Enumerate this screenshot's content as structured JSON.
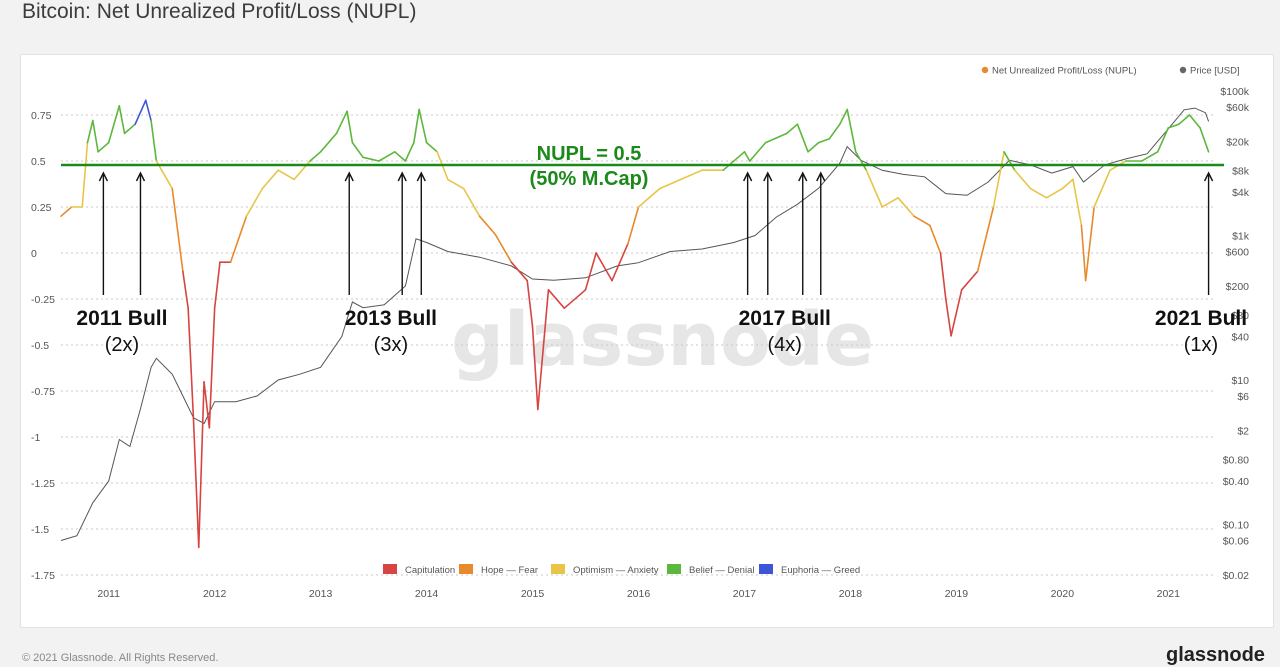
{
  "page": {
    "title": "Bitcoin: Net Unrealized Profit/Loss (NUPL)",
    "footer_left": "© 2021 Glassnode. All Rights Reserved.",
    "footer_brand": "glassnode",
    "watermark": "glassnode"
  },
  "chart_data": {
    "type": "line",
    "title": "Bitcoin: Net Unrealized Profit/Loss (NUPL)",
    "x_ticks": [
      "2011",
      "2012",
      "2013",
      "2014",
      "2015",
      "2016",
      "2017",
      "2018",
      "2019",
      "2020",
      "2021"
    ],
    "x_range": [
      2010.55,
      2021.45
    ],
    "y_left_ticks": [
      "0.75",
      "0.5",
      "0.25",
      "0",
      "-0.25",
      "-0.5",
      "-0.75",
      "-1",
      "-1.25",
      "-1.5",
      "-1.75"
    ],
    "y_left_values": [
      0.75,
      0.5,
      0.25,
      0,
      -0.25,
      -0.5,
      -0.75,
      -1,
      -1.25,
      -1.5,
      -1.75
    ],
    "y_left_range": [
      -1.75,
      0.95
    ],
    "y_right_scale": "log",
    "y_right_ticks": [
      "$100k",
      "$60k",
      "$20k",
      "$8k",
      "$4k",
      "$1k",
      "$600",
      "$200",
      "$80",
      "$40",
      "$10",
      "$6",
      "$2",
      "$0.80",
      "$0.40",
      "$0.10",
      "$0.06",
      "$0.02"
    ],
    "y_right_values": [
      100000,
      60000,
      20000,
      8000,
      4000,
      1000,
      600,
      200,
      80,
      40,
      10,
      6,
      2,
      0.8,
      0.4,
      0.1,
      0.06,
      0.02
    ],
    "top_legend": [
      {
        "name": "Net Unrealized Profit/Loss (NUPL)",
        "color": "#e8892b"
      },
      {
        "name": "Price [USD]",
        "color": "#666666"
      }
    ],
    "zone_legend": [
      {
        "name": "Capitulation",
        "color": "#d64541",
        "min": -2,
        "max": 0
      },
      {
        "name": "Hope — Fear",
        "color": "#e8892b",
        "min": 0,
        "max": 0.25
      },
      {
        "name": "Optimism — Anxiety",
        "color": "#e8c547",
        "min": 0.25,
        "max": 0.5
      },
      {
        "name": "Belief — Denial",
        "color": "#5cb83c",
        "min": 0.5,
        "max": 0.75
      },
      {
        "name": "Euphoria — Greed",
        "color": "#3e55d6",
        "min": 0.75,
        "max": 2
      }
    ],
    "reference_line": {
      "y": 0.5,
      "color": "#1b8a1b",
      "label_line1": "NUPL = 0.5",
      "label_line2": "(50% M.Cap)"
    },
    "nupl_series": {
      "x": [
        2010.55,
        2010.65,
        2010.75,
        2010.8,
        2010.85,
        2010.9,
        2011.0,
        2011.1,
        2011.15,
        2011.25,
        2011.35,
        2011.4,
        2011.45,
        2011.5,
        2011.6,
        2011.7,
        2011.75,
        2011.8,
        2011.85,
        2011.9,
        2011.95,
        2012.0,
        2012.05,
        2012.15,
        2012.3,
        2012.45,
        2012.6,
        2012.75,
        2012.9,
        2013.0,
        2013.15,
        2013.25,
        2013.3,
        2013.4,
        2013.55,
        2013.7,
        2013.8,
        2013.88,
        2013.93,
        2014.0,
        2014.1,
        2014.2,
        2014.35,
        2014.5,
        2014.65,
        2014.8,
        2014.95,
        2015.0,
        2015.05,
        2015.15,
        2015.3,
        2015.5,
        2015.6,
        2015.75,
        2015.9,
        2016.0,
        2016.2,
        2016.4,
        2016.6,
        2016.8,
        2017.0,
        2017.05,
        2017.2,
        2017.4,
        2017.5,
        2017.6,
        2017.7,
        2017.8,
        2017.9,
        2017.97,
        2018.05,
        2018.15,
        2018.3,
        2018.45,
        2018.6,
        2018.75,
        2018.85,
        2018.9,
        2018.95,
        2019.05,
        2019.2,
        2019.35,
        2019.45,
        2019.55,
        2019.7,
        2019.85,
        2020.0,
        2020.1,
        2020.18,
        2020.22,
        2020.3,
        2020.45,
        2020.6,
        2020.75,
        2020.9,
        2021.0,
        2021.1,
        2021.2,
        2021.3,
        2021.38
      ],
      "y": [
        0.2,
        0.25,
        0.25,
        0.6,
        0.72,
        0.55,
        0.6,
        0.8,
        0.65,
        0.7,
        0.83,
        0.72,
        0.5,
        0.45,
        0.35,
        -0.1,
        -0.3,
        -0.9,
        -1.6,
        -0.7,
        -0.95,
        -0.3,
        -0.05,
        -0.05,
        0.2,
        0.35,
        0.45,
        0.4,
        0.5,
        0.55,
        0.65,
        0.77,
        0.6,
        0.52,
        0.5,
        0.55,
        0.5,
        0.6,
        0.78,
        0.6,
        0.55,
        0.4,
        0.35,
        0.2,
        0.1,
        -0.05,
        -0.15,
        -0.4,
        -0.85,
        -0.2,
        -0.3,
        -0.2,
        0.0,
        -0.15,
        0.05,
        0.25,
        0.35,
        0.4,
        0.45,
        0.45,
        0.55,
        0.5,
        0.6,
        0.65,
        0.7,
        0.55,
        0.6,
        0.62,
        0.7,
        0.78,
        0.55,
        0.45,
        0.25,
        0.3,
        0.2,
        0.15,
        0.0,
        -0.25,
        -0.45,
        -0.2,
        -0.1,
        0.25,
        0.55,
        0.45,
        0.35,
        0.3,
        0.35,
        0.4,
        0.15,
        -0.15,
        0.25,
        0.45,
        0.5,
        0.5,
        0.55,
        0.68,
        0.7,
        0.75,
        0.68,
        0.55
      ]
    },
    "price_series": {
      "x": [
        2010.55,
        2010.7,
        2010.85,
        2011.0,
        2011.1,
        2011.2,
        2011.3,
        2011.4,
        2011.45,
        2011.6,
        2011.7,
        2011.8,
        2011.9,
        2012.0,
        2012.2,
        2012.4,
        2012.6,
        2012.8,
        2013.0,
        2013.2,
        2013.3,
        2013.4,
        2013.6,
        2013.8,
        2013.9,
        2014.0,
        2014.2,
        2014.5,
        2014.8,
        2015.0,
        2015.2,
        2015.5,
        2015.8,
        2016.0,
        2016.3,
        2016.6,
        2016.9,
        2017.1,
        2017.3,
        2017.5,
        2017.7,
        2017.9,
        2017.97,
        2018.1,
        2018.3,
        2018.5,
        2018.7,
        2018.9,
        2019.1,
        2019.3,
        2019.5,
        2019.7,
        2019.9,
        2020.1,
        2020.2,
        2020.4,
        2020.6,
        2020.8,
        2021.0,
        2021.15,
        2021.25,
        2021.35,
        2021.38
      ],
      "y": [
        0.06,
        0.07,
        0.2,
        0.4,
        1.5,
        1.2,
        4.0,
        15,
        20,
        12,
        6,
        3,
        2.5,
        5,
        5,
        6,
        10,
        12,
        15,
        40,
        120,
        100,
        110,
        200,
        900,
        800,
        600,
        500,
        380,
        250,
        240,
        260,
        380,
        420,
        600,
        650,
        800,
        1000,
        1800,
        2700,
        4500,
        10000,
        17000,
        11000,
        8000,
        7000,
        6500,
        3800,
        3600,
        5500,
        11000,
        9500,
        7300,
        9000,
        5500,
        9500,
        11500,
        13500,
        30000,
        55000,
        58000,
        50000,
        38000
      ]
    },
    "annotations": [
      {
        "label": "2011 Bull",
        "multiple": "(2x)",
        "arrows_x": [
          2010.95,
          2011.3
        ]
      },
      {
        "label": "2013 Bull",
        "multiple": "(3x)",
        "arrows_x": [
          2013.27,
          2013.77,
          2013.95
        ]
      },
      {
        "label": "2017 Bull",
        "multiple": "(4x)",
        "arrows_x": [
          2017.03,
          2017.22,
          2017.55,
          2017.72
        ]
      },
      {
        "label": "2021 Bull",
        "multiple": "(1x)",
        "arrows_x": [
          2021.38
        ]
      }
    ]
  }
}
